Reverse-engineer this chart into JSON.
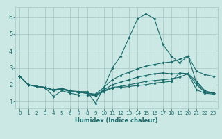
{
  "xlabel": "Humidex (Indice chaleur)",
  "ylabel": "",
  "background_color": "#cce8e4",
  "grid_color": "#aaccc8",
  "line_color": "#1a6b6b",
  "xlim": [
    -0.5,
    23.5
  ],
  "ylim": [
    0.6,
    6.6
  ],
  "xticks": [
    0,
    1,
    2,
    3,
    4,
    5,
    6,
    7,
    8,
    9,
    10,
    11,
    12,
    13,
    14,
    15,
    16,
    17,
    18,
    19,
    20,
    21,
    22,
    23
  ],
  "yticks": [
    1,
    2,
    3,
    4,
    5,
    6
  ],
  "lines": [
    [
      2.5,
      2.0,
      1.9,
      1.85,
      1.7,
      1.8,
      1.65,
      1.6,
      1.6,
      0.9,
      1.85,
      3.0,
      3.7,
      4.8,
      5.9,
      6.2,
      5.9,
      4.4,
      3.7,
      3.3,
      3.7,
      2.1,
      1.6,
      1.5
    ],
    [
      2.5,
      2.0,
      1.9,
      1.85,
      1.7,
      1.75,
      1.6,
      1.55,
      1.5,
      1.45,
      1.85,
      2.3,
      2.55,
      2.75,
      2.95,
      3.1,
      3.2,
      3.3,
      3.35,
      3.5,
      3.7,
      2.8,
      2.6,
      2.5
    ],
    [
      2.5,
      2.0,
      1.9,
      1.85,
      1.65,
      1.75,
      1.6,
      1.55,
      1.5,
      1.4,
      1.7,
      2.0,
      2.15,
      2.3,
      2.45,
      2.55,
      2.65,
      2.7,
      2.65,
      2.65,
      2.65,
      2.2,
      1.65,
      1.5
    ],
    [
      2.5,
      2.0,
      1.9,
      1.85,
      1.65,
      1.75,
      1.6,
      1.55,
      1.5,
      1.4,
      1.65,
      1.85,
      1.9,
      2.0,
      2.1,
      2.2,
      2.25,
      2.3,
      2.35,
      2.45,
      2.65,
      2.0,
      1.55,
      1.5
    ],
    [
      2.5,
      2.0,
      1.9,
      1.85,
      1.3,
      1.65,
      1.5,
      1.4,
      1.4,
      1.35,
      1.6,
      1.8,
      1.85,
      1.9,
      1.95,
      2.0,
      2.1,
      2.15,
      2.2,
      2.7,
      2.65,
      1.7,
      1.5,
      1.45
    ]
  ],
  "figsize": [
    3.2,
    2.0
  ],
  "dpi": 100
}
